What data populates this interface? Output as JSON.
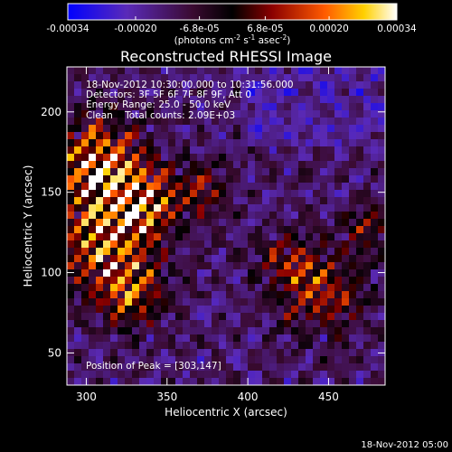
{
  "chart_data": {
    "type": "heatmap",
    "title": "Reconstructed RHESSI Image",
    "xlabel": "Heliocentric X (arcsec)",
    "ylabel": "Heliocentric Y (arcsec)",
    "xlim": [
      288,
      485
    ],
    "ylim": [
      30,
      228
    ],
    "x_ticks": [
      "300",
      "350",
      "400",
      "450"
    ],
    "x_tick_values": [
      300,
      350,
      400,
      450
    ],
    "y_ticks": [
      "50",
      "100",
      "150",
      "200"
    ],
    "y_tick_values": [
      50,
      100,
      150,
      200
    ],
    "colorbar": {
      "min": -0.00034,
      "max": 0.00034,
      "tick_labels": [
        "-0.00034",
        "-0.00020",
        "-6.8e-05",
        "6.8e-05",
        "0.00020",
        "0.00034"
      ],
      "tick_values": [
        -0.00034,
        -0.0002,
        -6.8e-05,
        6.8e-05,
        0.0002,
        0.00034
      ],
      "unit_text": "(photons cm",
      "unit_exp1": "-2",
      "unit_mid": " s",
      "unit_exp2": "-1",
      "unit_mid2": " asec",
      "unit_exp3": "-2",
      "unit_end": ")",
      "colors": [
        "#0000ff",
        "#5a2ab8",
        "#3a0a30",
        "#000000",
        "#8a0000",
        "#ff5a00",
        "#ffd000",
        "#ffffff"
      ]
    },
    "annotations": {
      "time_range": "18-Nov-2012 10:30:00.000 to 10:31:56.000",
      "detectors": "Detectors: 3F 5F 6F 7F 8F 9F, Att 0",
      "energy": "Energy Range: 25.0 - 50.0 keV",
      "clean": "Clean    Total counts: 2.09E+03",
      "peak": "Position of Peak = [303,147]"
    },
    "peak": [
      303,
      147
    ]
  },
  "footer": {
    "timestamp": "18-Nov-2012 05:00"
  }
}
